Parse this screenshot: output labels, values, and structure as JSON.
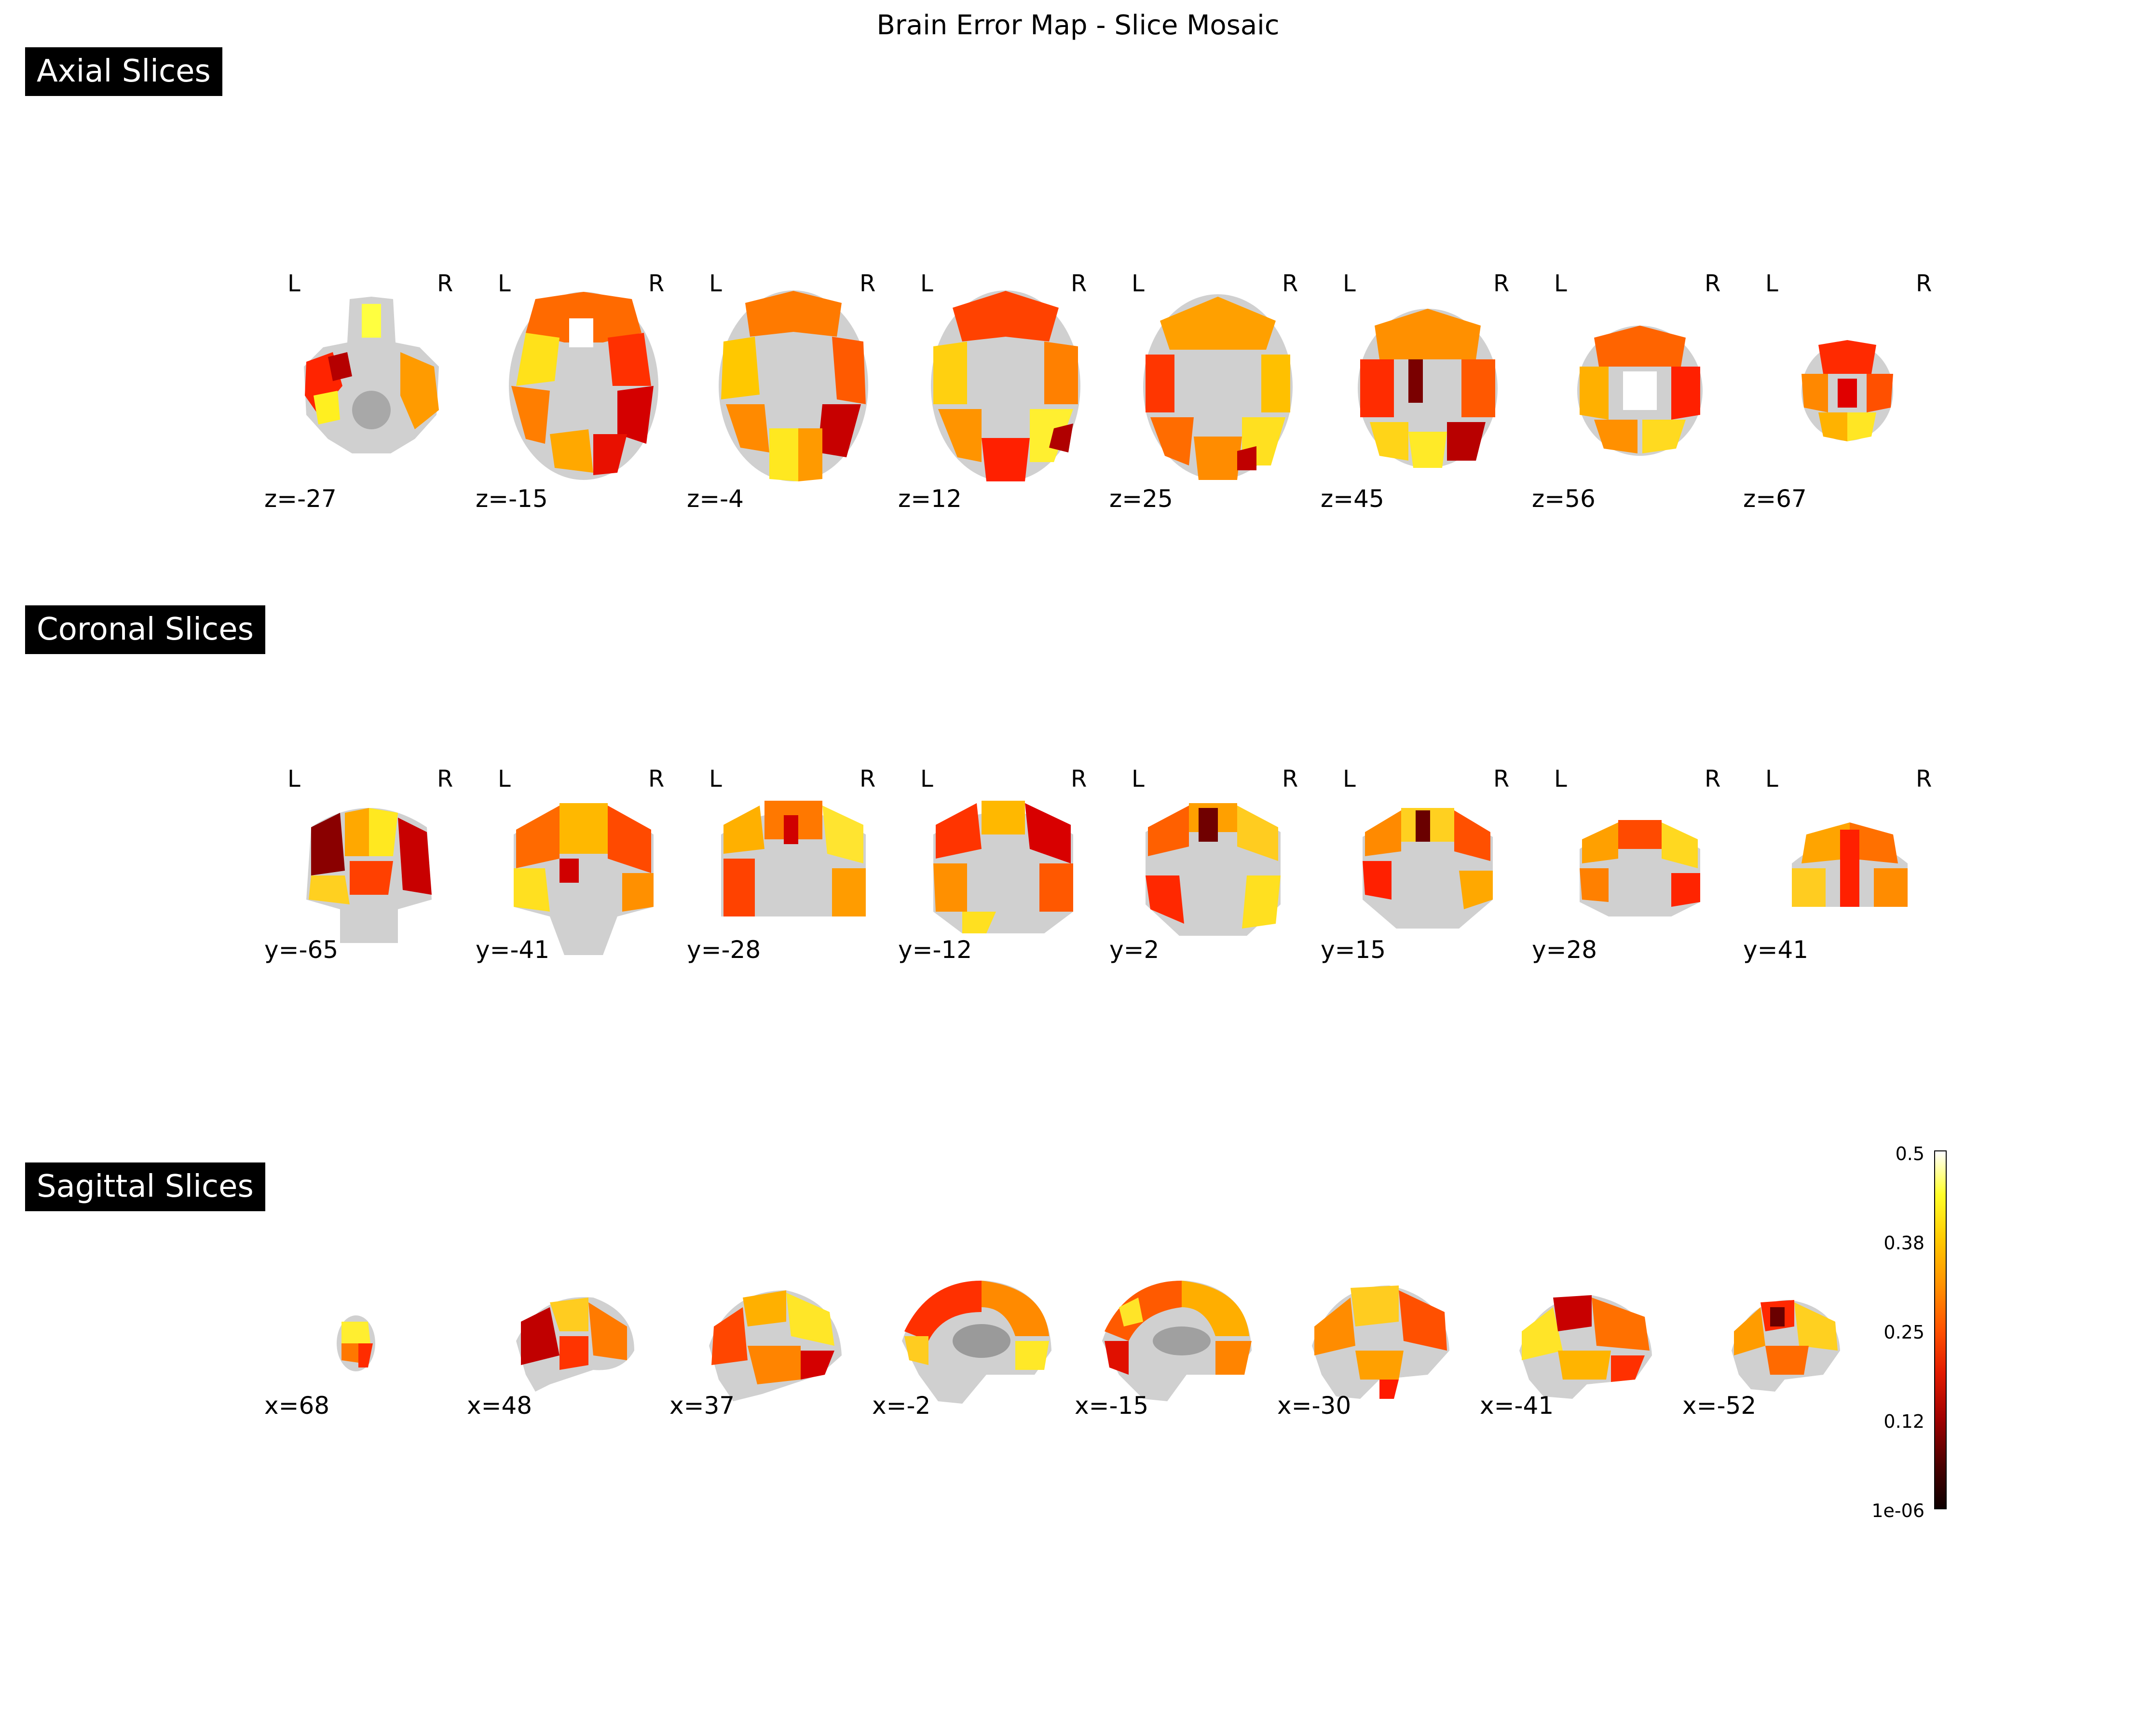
{
  "title": "Brain Error Map - Slice Mosaic",
  "sections": {
    "axial": {
      "label": "Axial Slices",
      "left_marker": "L",
      "right_marker": "R",
      "coords": [
        "z=-27",
        "z=-15",
        "z=-4",
        "z=12",
        "z=25",
        "z=45",
        "z=56",
        "z=67"
      ]
    },
    "coronal": {
      "label": "Coronal Slices",
      "left_marker": "L",
      "right_marker": "R",
      "coords": [
        "y=-65",
        "y=-41",
        "y=-28",
        "y=-12",
        "y=2",
        "y=15",
        "y=28",
        "y=41"
      ]
    },
    "sagittal": {
      "label": "Sagittal Slices",
      "coords": [
        "x=68",
        "x=48",
        "x=37",
        "x=-2",
        "x=-15",
        "x=-30",
        "x=-41",
        "x=-52"
      ]
    }
  },
  "colorbar": {
    "colormap": "hot",
    "ticks": [
      "0.5",
      "0.38",
      "0.25",
      "0.12",
      "1e-06"
    ],
    "min": 1e-06,
    "max": 0.5
  }
}
